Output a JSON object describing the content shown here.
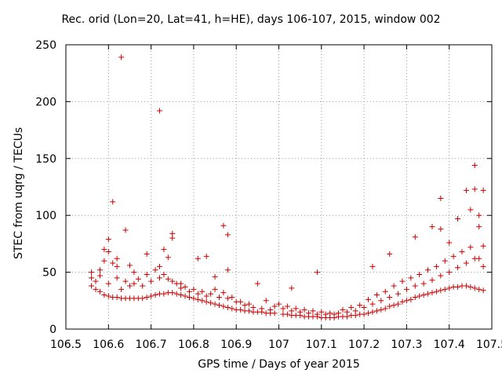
{
  "chart_data": {
    "type": "scatter",
    "title": "Rec. orid (Lon=20, Lat=41, h=HE), days 106-107, 2015, window 002",
    "xlabel": "GPS time / Days of year 2015",
    "ylabel": "STEC from uqrg / TECUs",
    "xlim": [
      106.5,
      107.5
    ],
    "ylim": [
      0,
      250
    ],
    "xticks": [
      "106.5",
      "106.6",
      "106.7",
      "106.8",
      "106.9",
      "107",
      "107.1",
      "107.2",
      "107.3",
      "107.4",
      "107.5"
    ],
    "yticks": [
      "0",
      "50",
      "100",
      "150",
      "200",
      "250"
    ],
    "grid": true,
    "marker": "+",
    "color": "#cc0000",
    "points": [
      [
        106.56,
        50
      ],
      [
        106.56,
        45
      ],
      [
        106.57,
        42
      ],
      [
        106.58,
        52
      ],
      [
        106.59,
        60
      ],
      [
        106.59,
        70
      ],
      [
        106.6,
        79
      ],
      [
        106.6,
        68
      ],
      [
        106.61,
        112
      ],
      [
        106.61,
        58
      ],
      [
        106.62,
        62
      ],
      [
        106.62,
        55
      ],
      [
        106.63,
        239
      ],
      [
        106.64,
        87
      ],
      [
        106.65,
        56
      ],
      [
        106.66,
        50
      ],
      [
        106.69,
        66
      ],
      [
        106.72,
        192
      ],
      [
        106.72,
        55
      ],
      [
        106.73,
        70
      ],
      [
        106.74,
        63
      ],
      [
        106.75,
        84
      ],
      [
        106.75,
        80
      ],
      [
        106.77,
        40
      ],
      [
        106.81,
        62
      ],
      [
        106.83,
        64
      ],
      [
        106.85,
        46
      ],
      [
        106.87,
        91
      ],
      [
        106.88,
        83
      ],
      [
        106.88,
        52
      ],
      [
        106.95,
        40
      ],
      [
        107.03,
        36
      ],
      [
        107.09,
        50
      ],
      [
        107.22,
        55
      ],
      [
        107.26,
        66
      ],
      [
        107.32,
        81
      ],
      [
        107.36,
        90
      ],
      [
        107.38,
        115
      ],
      [
        107.38,
        88
      ],
      [
        107.4,
        76
      ],
      [
        107.42,
        97
      ],
      [
        107.44,
        122
      ],
      [
        107.45,
        105
      ],
      [
        107.46,
        144
      ],
      [
        107.46,
        123
      ],
      [
        107.47,
        100
      ],
      [
        107.47,
        90
      ],
      [
        107.48,
        122
      ],
      [
        107.48,
        73
      ],
      [
        107.48,
        55
      ],
      [
        106.56,
        38
      ],
      [
        106.57,
        35
      ],
      [
        106.58,
        33
      ],
      [
        106.59,
        30
      ],
      [
        106.6,
        29
      ],
      [
        106.61,
        28
      ],
      [
        106.62,
        28
      ],
      [
        106.63,
        27
      ],
      [
        106.64,
        27
      ],
      [
        106.65,
        27
      ],
      [
        106.66,
        27
      ],
      [
        106.67,
        27
      ],
      [
        106.68,
        27
      ],
      [
        106.69,
        28
      ],
      [
        106.7,
        29
      ],
      [
        106.71,
        30
      ],
      [
        106.72,
        31
      ],
      [
        106.73,
        31
      ],
      [
        106.74,
        32
      ],
      [
        106.75,
        32
      ],
      [
        106.76,
        31
      ],
      [
        106.77,
        30
      ],
      [
        106.78,
        29
      ],
      [
        106.79,
        28
      ],
      [
        106.8,
        27
      ],
      [
        106.81,
        26
      ],
      [
        106.82,
        25
      ],
      [
        106.83,
        24
      ],
      [
        106.84,
        23
      ],
      [
        106.85,
        22
      ],
      [
        106.86,
        21
      ],
      [
        106.87,
        20
      ],
      [
        106.88,
        19
      ],
      [
        106.89,
        18
      ],
      [
        106.9,
        17
      ],
      [
        106.91,
        17
      ],
      [
        106.92,
        16
      ],
      [
        106.93,
        16
      ],
      [
        106.94,
        15
      ],
      [
        106.95,
        15
      ],
      [
        106.96,
        15
      ],
      [
        106.97,
        14
      ],
      [
        106.98,
        14
      ],
      [
        106.99,
        14
      ],
      [
        107.01,
        13
      ],
      [
        107.02,
        13
      ],
      [
        107.03,
        12
      ],
      [
        107.04,
        12
      ],
      [
        107.05,
        12
      ],
      [
        107.06,
        11
      ],
      [
        107.07,
        11
      ],
      [
        107.08,
        11
      ],
      [
        107.09,
        11
      ],
      [
        107.1,
        10
      ],
      [
        107.11,
        10
      ],
      [
        107.12,
        10
      ],
      [
        107.13,
        10
      ],
      [
        107.14,
        11
      ],
      [
        107.15,
        11
      ],
      [
        107.16,
        11
      ],
      [
        107.17,
        12
      ],
      [
        107.18,
        12
      ],
      [
        107.19,
        13
      ],
      [
        107.2,
        13
      ],
      [
        107.21,
        14
      ],
      [
        107.22,
        15
      ],
      [
        107.23,
        16
      ],
      [
        107.24,
        17
      ],
      [
        107.25,
        18
      ],
      [
        107.26,
        20
      ],
      [
        107.27,
        21
      ],
      [
        107.28,
        22
      ],
      [
        107.29,
        24
      ],
      [
        107.3,
        25
      ],
      [
        107.31,
        26
      ],
      [
        107.32,
        28
      ],
      [
        107.33,
        29
      ],
      [
        107.34,
        30
      ],
      [
        107.35,
        31
      ],
      [
        107.36,
        32
      ],
      [
        107.37,
        33
      ],
      [
        107.38,
        34
      ],
      [
        107.39,
        35
      ],
      [
        107.4,
        36
      ],
      [
        107.41,
        37
      ],
      [
        107.42,
        37
      ],
      [
        107.43,
        38
      ],
      [
        107.44,
        38
      ],
      [
        107.45,
        37
      ],
      [
        107.46,
        36
      ],
      [
        107.47,
        35
      ],
      [
        107.48,
        34
      ],
      [
        106.62,
        45
      ],
      [
        106.64,
        42
      ],
      [
        106.66,
        40
      ],
      [
        106.68,
        38
      ],
      [
        106.7,
        42
      ],
      [
        106.72,
        45
      ],
      [
        106.74,
        44
      ],
      [
        106.76,
        40
      ],
      [
        106.78,
        37
      ],
      [
        106.8,
        35
      ],
      [
        106.82,
        33
      ],
      [
        106.84,
        31
      ],
      [
        106.86,
        28
      ],
      [
        106.88,
        27
      ],
      [
        106.9,
        24
      ],
      [
        106.92,
        21
      ],
      [
        106.94,
        19
      ],
      [
        106.96,
        18
      ],
      [
        106.98,
        17
      ],
      [
        107.0,
        22
      ],
      [
        107.02,
        20
      ],
      [
        107.04,
        18
      ],
      [
        107.06,
        17
      ],
      [
        107.08,
        16
      ],
      [
        107.1,
        15
      ],
      [
        107.12,
        14
      ],
      [
        107.14,
        14
      ],
      [
        107.16,
        15
      ],
      [
        107.18,
        16
      ],
      [
        107.2,
        19
      ],
      [
        107.22,
        22
      ],
      [
        107.24,
        25
      ],
      [
        107.26,
        28
      ],
      [
        107.28,
        31
      ],
      [
        107.3,
        35
      ],
      [
        107.32,
        38
      ],
      [
        107.34,
        40
      ],
      [
        107.36,
        43
      ],
      [
        107.38,
        47
      ],
      [
        107.4,
        50
      ],
      [
        107.42,
        54
      ],
      [
        107.44,
        58
      ],
      [
        107.46,
        62
      ],
      [
        106.58,
        47
      ],
      [
        106.6,
        40
      ],
      [
        106.63,
        35
      ],
      [
        106.65,
        38
      ],
      [
        106.67,
        44
      ],
      [
        106.69,
        48
      ],
      [
        106.71,
        52
      ],
      [
        106.73,
        48
      ],
      [
        106.75,
        42
      ],
      [
        106.77,
        36
      ],
      [
        106.79,
        33
      ],
      [
        106.81,
        31
      ],
      [
        106.83,
        29
      ],
      [
        106.85,
        35
      ],
      [
        106.87,
        32
      ],
      [
        106.89,
        28
      ],
      [
        106.91,
        24
      ],
      [
        106.93,
        22
      ],
      [
        106.97,
        25
      ],
      [
        106.99,
        20
      ],
      [
        107.01,
        18
      ],
      [
        107.03,
        16
      ],
      [
        107.05,
        15
      ],
      [
        107.07,
        14
      ],
      [
        107.09,
        13
      ],
      [
        107.11,
        13
      ],
      [
        107.13,
        13
      ],
      [
        107.15,
        17
      ],
      [
        107.17,
        19
      ],
      [
        107.19,
        21
      ],
      [
        107.21,
        26
      ],
      [
        107.23,
        30
      ],
      [
        107.25,
        33
      ],
      [
        107.27,
        38
      ],
      [
        107.29,
        42
      ],
      [
        107.31,
        45
      ],
      [
        107.33,
        48
      ],
      [
        107.35,
        52
      ],
      [
        107.37,
        55
      ],
      [
        107.39,
        60
      ],
      [
        107.41,
        64
      ],
      [
        107.43,
        68
      ],
      [
        107.45,
        72
      ],
      [
        107.47,
        62
      ]
    ]
  }
}
